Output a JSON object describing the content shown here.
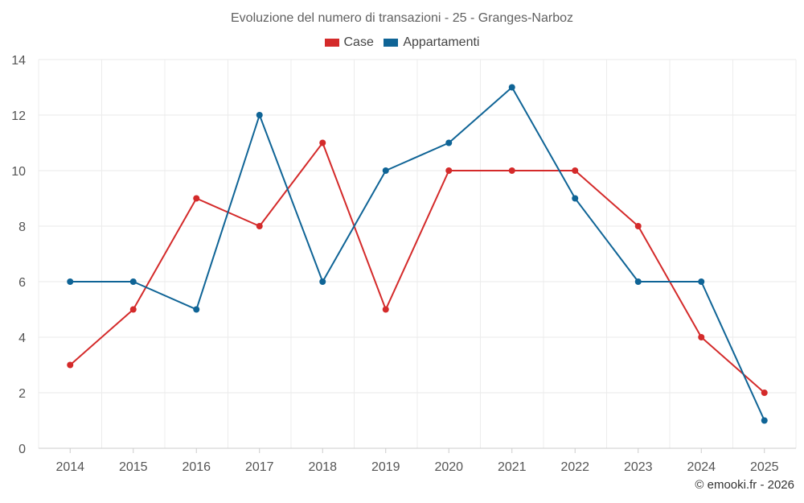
{
  "chart_data": {
    "type": "line",
    "title": "Evoluzione del numero di transazioni - 25 - Granges-Narboz",
    "categories": [
      "2014",
      "2015",
      "2016",
      "2017",
      "2018",
      "2019",
      "2020",
      "2021",
      "2022",
      "2023",
      "2024",
      "2025"
    ],
    "series": [
      {
        "name": "Case",
        "color": "#d42a2a",
        "values": [
          3,
          5,
          9,
          8,
          11,
          5,
          10,
          10,
          10,
          8,
          4,
          2
        ]
      },
      {
        "name": "Appartamenti",
        "color": "#0f6496",
        "values": [
          6,
          6,
          5,
          12,
          6,
          10,
          11,
          13,
          9,
          6,
          6,
          1
        ]
      }
    ],
    "ylim": [
      0,
      14
    ],
    "yticks": [
      0,
      2,
      4,
      6,
      8,
      10,
      12,
      14
    ],
    "xlabel": "",
    "ylabel": "",
    "grid": true,
    "legend": "top-center"
  },
  "credit": "© emooki.fr - 2026"
}
